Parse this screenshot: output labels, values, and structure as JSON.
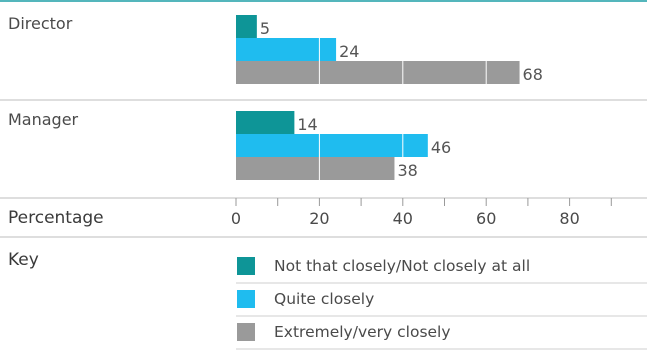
{
  "chart_data": {
    "type": "bar",
    "orientation": "horizontal",
    "categories": [
      "Director",
      "Manager"
    ],
    "series": [
      {
        "name": "Not that closely/Not closely at all",
        "color": "#0e9597",
        "values": [
          5,
          14
        ]
      },
      {
        "name": "Quite closely",
        "color": "#1fbcef",
        "values": [
          24,
          46
        ]
      },
      {
        "name": "Extremely/very closely",
        "color": "#9a9a9a",
        "values": [
          68,
          38
        ]
      }
    ],
    "xlabel": "Percentage",
    "xticks": [
      0,
      20,
      40,
      60,
      80
    ],
    "xlim": [
      0,
      90
    ],
    "minor_ticks": true,
    "grid": "vertical, white",
    "legend_title": "Key",
    "legend_placement": "bottom",
    "colors": {
      "top_rule": "#1c9ea6",
      "divider": "#bdbdbd",
      "text": "#4a4a4a",
      "value_label": "#555555"
    }
  }
}
